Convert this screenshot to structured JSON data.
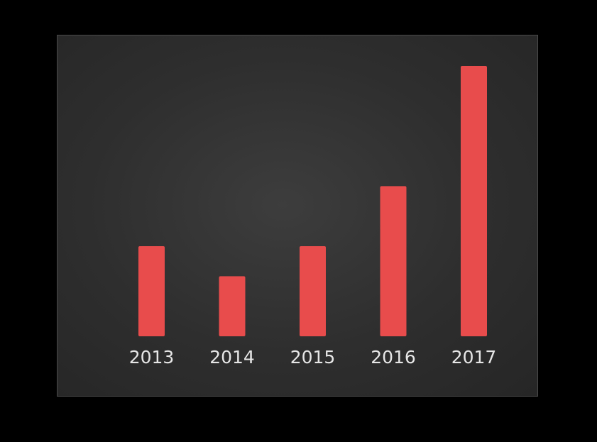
{
  "chart_data": {
    "type": "bar",
    "categories": [
      "2013",
      "2014",
      "2015",
      "2016",
      "2017"
    ],
    "values": [
      3,
      2,
      3,
      5,
      9
    ],
    "title": "",
    "xlabel": "",
    "ylabel": "",
    "ylim": [
      0,
      9
    ],
    "grid": false,
    "legend": "none",
    "bar_color": "#e84c4c",
    "background_color": "#333333",
    "label_color": "#e6e6e6"
  }
}
